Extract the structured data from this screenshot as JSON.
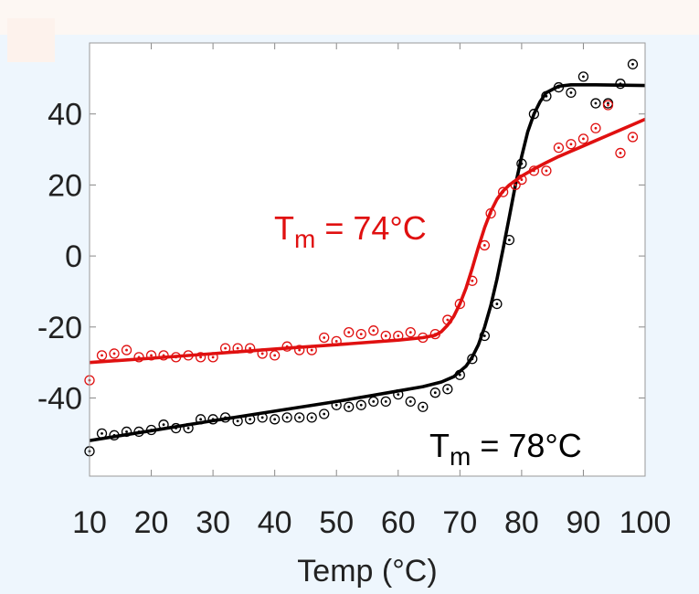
{
  "chart_data": {
    "type": "scatter",
    "title": "",
    "xlabel": "Temp (°C)",
    "ylabel": "",
    "xlim": [
      10,
      100
    ],
    "ylim": [
      -62,
      60
    ],
    "x_ticks": [
      10,
      20,
      30,
      40,
      50,
      60,
      70,
      80,
      90,
      100
    ],
    "y_ticks": [
      40,
      20,
      0,
      -20,
      -40
    ],
    "grid": false,
    "colors": {
      "black": "#000000",
      "red": "#e01010"
    },
    "series": [
      {
        "color": "black",
        "marker": "circled-dot",
        "annotation": {
          "main": "T",
          "sub": "m",
          "rest": " = 78°C"
        },
        "points": [
          [
            10,
            -55
          ],
          [
            12,
            -50
          ],
          [
            14,
            -50.5
          ],
          [
            16,
            -49.5
          ],
          [
            18,
            -49.5
          ],
          [
            20,
            -49
          ],
          [
            22,
            -47.5
          ],
          [
            24,
            -48.5
          ],
          [
            26,
            -48.5
          ],
          [
            28,
            -46
          ],
          [
            30,
            -46
          ],
          [
            32,
            -45.5
          ],
          [
            34,
            -46.5
          ],
          [
            36,
            -46
          ],
          [
            38,
            -45.5
          ],
          [
            40,
            -46
          ],
          [
            42,
            -45.5
          ],
          [
            44,
            -45.5
          ],
          [
            46,
            -45.5
          ],
          [
            48,
            -44.5
          ],
          [
            50,
            -42
          ],
          [
            52,
            -42.5
          ],
          [
            54,
            -42
          ],
          [
            56,
            -41
          ],
          [
            58,
            -41
          ],
          [
            60,
            -39
          ],
          [
            62,
            -41
          ],
          [
            64,
            -42.5
          ],
          [
            66,
            -38.5
          ],
          [
            68,
            -37.5
          ],
          [
            70,
            -33.5
          ],
          [
            72,
            -29
          ],
          [
            74,
            -22.5
          ],
          [
            76,
            -13.5
          ],
          [
            78,
            4.5
          ],
          [
            80,
            26
          ],
          [
            82,
            40
          ],
          [
            84,
            45
          ],
          [
            86,
            47.5
          ],
          [
            88,
            46
          ],
          [
            90,
            50.5
          ],
          [
            92,
            43
          ],
          [
            94,
            43
          ],
          [
            96,
            48.5
          ],
          [
            98,
            54
          ]
        ],
        "fit": [
          [
            10,
            -52
          ],
          [
            20,
            -49.2
          ],
          [
            30,
            -46.4
          ],
          [
            40,
            -43.7
          ],
          [
            50,
            -41
          ],
          [
            55,
            -39.5
          ],
          [
            60,
            -38
          ],
          [
            64,
            -36.8
          ],
          [
            67,
            -35.5
          ],
          [
            69,
            -34
          ],
          [
            71,
            -31
          ],
          [
            72,
            -28.5
          ],
          [
            73,
            -25
          ],
          [
            74,
            -20
          ],
          [
            75,
            -14
          ],
          [
            76,
            -6.5
          ],
          [
            77,
            2
          ],
          [
            78,
            11
          ],
          [
            79,
            20
          ],
          [
            80,
            28
          ],
          [
            81,
            35
          ],
          [
            82,
            40
          ],
          [
            83,
            43.5
          ],
          [
            84,
            46
          ],
          [
            86,
            47.8
          ],
          [
            88,
            48.2
          ],
          [
            92,
            48.2
          ],
          [
            96,
            48.1
          ],
          [
            100,
            48
          ]
        ]
      },
      {
        "color": "red",
        "marker": "circled-dot",
        "annotation": {
          "main": "T",
          "sub": "m",
          "rest": " = 74°C"
        },
        "points": [
          [
            10,
            -35
          ],
          [
            12,
            -28
          ],
          [
            14,
            -27.5
          ],
          [
            16,
            -26.5
          ],
          [
            18,
            -28.5
          ],
          [
            20,
            -28
          ],
          [
            22,
            -28
          ],
          [
            24,
            -28.5
          ],
          [
            26,
            -28
          ],
          [
            28,
            -28.5
          ],
          [
            30,
            -28.5
          ],
          [
            32,
            -26
          ],
          [
            34,
            -26
          ],
          [
            36,
            -26
          ],
          [
            38,
            -27.5
          ],
          [
            40,
            -28
          ],
          [
            42,
            -25.5
          ],
          [
            44,
            -26.5
          ],
          [
            46,
            -26.5
          ],
          [
            48,
            -23
          ],
          [
            50,
            -24
          ],
          [
            52,
            -21.5
          ],
          [
            54,
            -22
          ],
          [
            56,
            -21
          ],
          [
            58,
            -22.5
          ],
          [
            60,
            -22.5
          ],
          [
            62,
            -21.5
          ],
          [
            64,
            -23
          ],
          [
            66,
            -22
          ],
          [
            68,
            -18
          ],
          [
            70,
            -13.5
          ],
          [
            72,
            -7
          ],
          [
            74,
            3
          ],
          [
            75,
            12
          ],
          [
            77,
            18
          ],
          [
            79,
            20
          ],
          [
            80,
            21.5
          ],
          [
            82,
            24
          ],
          [
            84,
            24
          ],
          [
            86,
            30.5
          ],
          [
            88,
            31.5
          ],
          [
            90,
            33
          ],
          [
            92,
            36
          ],
          [
            94,
            42.5
          ],
          [
            96,
            29
          ],
          [
            98,
            33.5
          ]
        ],
        "fit": [
          [
            10,
            -30
          ],
          [
            20,
            -28.8
          ],
          [
            30,
            -27.5
          ],
          [
            40,
            -26.2
          ],
          [
            50,
            -25
          ],
          [
            60,
            -23.7
          ],
          [
            64,
            -23
          ],
          [
            66,
            -22.3
          ],
          [
            67,
            -21.3
          ],
          [
            68,
            -19.5
          ],
          [
            69,
            -17
          ],
          [
            70,
            -13.5
          ],
          [
            71,
            -9
          ],
          [
            72,
            -3.5
          ],
          [
            73,
            2.5
          ],
          [
            74,
            8
          ],
          [
            75,
            12.5
          ],
          [
            76,
            16
          ],
          [
            77,
            18.3
          ],
          [
            78,
            20
          ],
          [
            80,
            22.5
          ],
          [
            82,
            24.5
          ],
          [
            84,
            26.3
          ],
          [
            86,
            28
          ],
          [
            88,
            29.5
          ],
          [
            90,
            31
          ],
          [
            92,
            32.5
          ],
          [
            94,
            34
          ],
          [
            96,
            35.5
          ],
          [
            98,
            37
          ],
          [
            100,
            38.5
          ]
        ]
      }
    ]
  }
}
